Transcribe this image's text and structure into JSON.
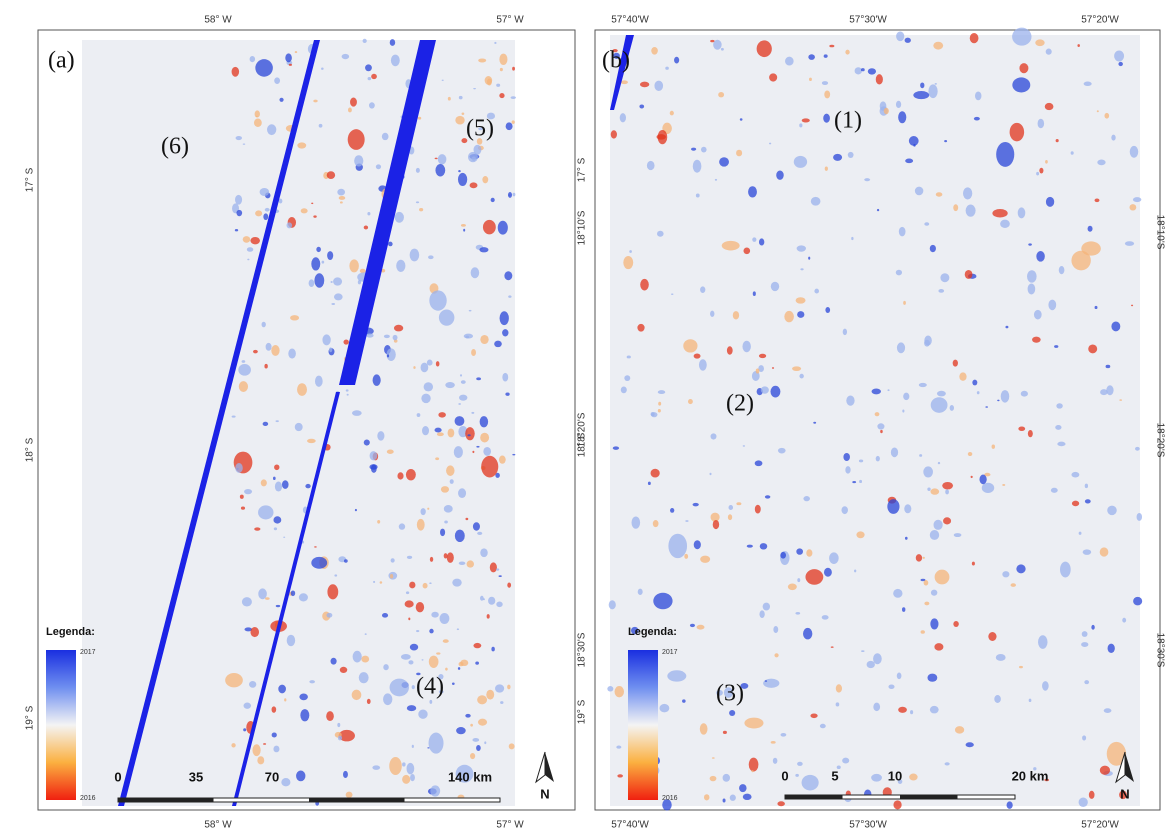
{
  "panels": [
    {
      "label": "(a)",
      "top_labels": [
        "58° W",
        "57° W"
      ],
      "bottom_labels": [
        "58° W",
        "57° W"
      ],
      "left_labels": [
        "17° S",
        "18° S",
        "19° S"
      ],
      "right_labels": [],
      "regions": [
        "(6)",
        "(5)",
        "(4)"
      ],
      "legend": {
        "title": "Legenda:",
        "high": "2017",
        "low": "2016"
      },
      "scale": [
        "0",
        "35",
        "70",
        "140 km"
      ],
      "north": "N"
    },
    {
      "label": "(b)",
      "top_labels": [
        "57°40'W",
        "57°30'W",
        "57°20'W"
      ],
      "bottom_labels": [
        "57°40'W",
        "57°30'W",
        "57°20'W"
      ],
      "left_labels": [
        "17° S",
        "18°10'S",
        "18°20'S",
        "18° S",
        "18°30'S",
        "19° S"
      ],
      "right_labels": [
        "18°10'S",
        "18°20'S",
        "18°30'S"
      ],
      "regions": [
        "(1)",
        "(2)",
        "(3)"
      ],
      "legend": {
        "title": "Legenda:",
        "high": "2017",
        "low": "2016"
      },
      "scale": [
        "0",
        "5",
        "10",
        "20 km"
      ],
      "north": "N"
    }
  ]
}
